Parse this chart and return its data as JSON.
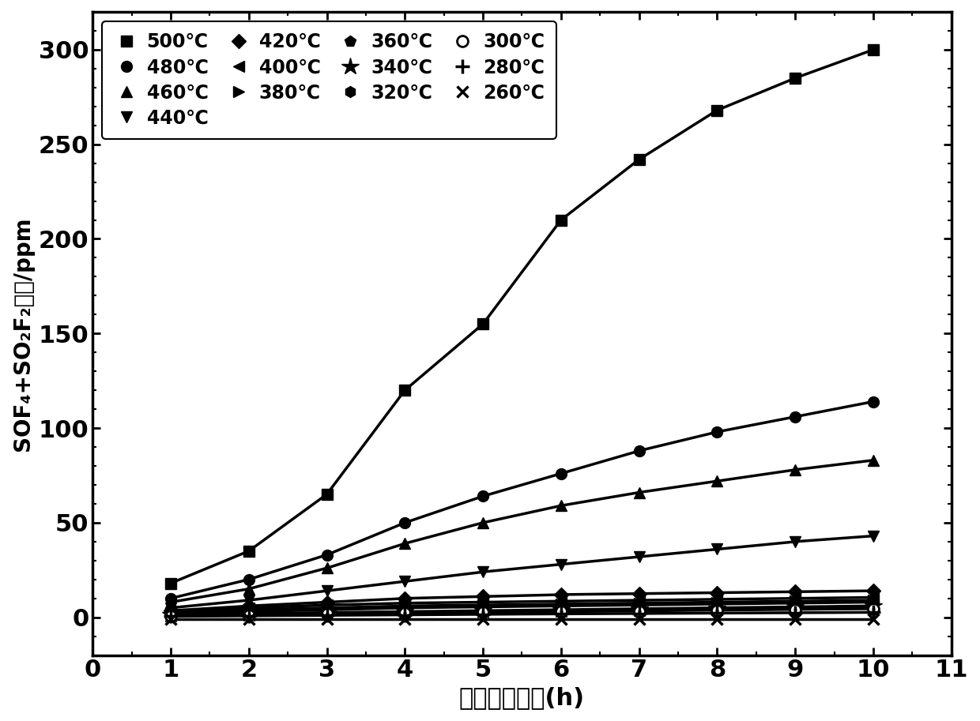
{
  "x": [
    1,
    2,
    3,
    4,
    5,
    6,
    7,
    8,
    9,
    10
  ],
  "series": [
    {
      "label": "500℃",
      "marker": "s",
      "values": [
        18,
        35,
        65,
        120,
        155,
        210,
        242,
        268,
        285,
        300
      ]
    },
    {
      "label": "480℃",
      "marker": "o",
      "values": [
        10,
        20,
        33,
        50,
        64,
        76,
        88,
        98,
        106,
        114
      ]
    },
    {
      "label": "460℃",
      "marker": "^",
      "values": [
        8,
        15,
        26,
        39,
        50,
        59,
        66,
        72,
        78,
        83
      ]
    },
    {
      "label": "440℃",
      "marker": "v",
      "values": [
        5,
        9,
        14,
        19,
        24,
        28,
        32,
        36,
        40,
        43
      ]
    },
    {
      "label": "420℃",
      "marker": "D",
      "values": [
        3.5,
        6,
        8,
        10,
        11,
        12,
        12.5,
        13,
        13.5,
        14
      ]
    },
    {
      "label": "400℃",
      "marker": "<",
      "values": [
        3,
        5,
        6.5,
        7.5,
        8,
        8.5,
        9,
        9.5,
        10,
        10.5
      ]
    },
    {
      "label": "380℃",
      "marker": ">",
      "values": [
        2.5,
        4,
        5,
        6,
        6.5,
        7,
        7.5,
        8,
        8.5,
        9
      ]
    },
    {
      "label": "360℃",
      "marker": "p",
      "values": [
        2,
        3,
        4,
        5,
        5.5,
        6,
        6.5,
        7,
        7.5,
        8
      ]
    },
    {
      "label": "340℃",
      "marker": "*",
      "values": [
        1.5,
        2,
        2.5,
        3,
        3.5,
        4,
        4.5,
        5,
        5.5,
        6
      ]
    },
    {
      "label": "320℃",
      "marker": "h",
      "values": [
        1,
        1.5,
        2,
        2.5,
        3,
        3.5,
        4,
        4.5,
        5,
        5.5
      ]
    },
    {
      "label": "300℃",
      "marker": "o_dot",
      "values": [
        0.8,
        1.2,
        1.8,
        2.2,
        2.6,
        3.0,
        3.4,
        3.8,
        4.2,
        4.5
      ]
    },
    {
      "label": "280℃",
      "marker": "+",
      "values": [
        0.5,
        0.8,
        1.0,
        1.3,
        1.6,
        1.8,
        2.0,
        2.2,
        2.4,
        2.6
      ]
    },
    {
      "label": "260℃",
      "marker": "x",
      "values": [
        -1,
        -1,
        -1,
        -1,
        -1,
        -1,
        -1,
        -1,
        -1,
        -1
      ]
    }
  ],
  "legend_order": [
    "500℃",
    "480℃",
    "460℃",
    "440℃",
    "420℃",
    "400℃",
    "380℃",
    "360℃",
    "340℃",
    "320℃",
    "300℃",
    "280℃",
    "260℃"
  ],
  "xlim": [
    0,
    11
  ],
  "ylim": [
    -20,
    320
  ],
  "xticks": [
    0,
    1,
    2,
    3,
    4,
    5,
    6,
    7,
    8,
    9,
    10,
    11
  ],
  "yticks": [
    0,
    50,
    100,
    150,
    200,
    250,
    300
  ],
  "xlabel": "过热故障时间(h)",
  "ylabel": "SOF₄+SO₂F₂浓度/ppm",
  "linewidth": 2.5,
  "markersize": 10,
  "color": "#000000"
}
